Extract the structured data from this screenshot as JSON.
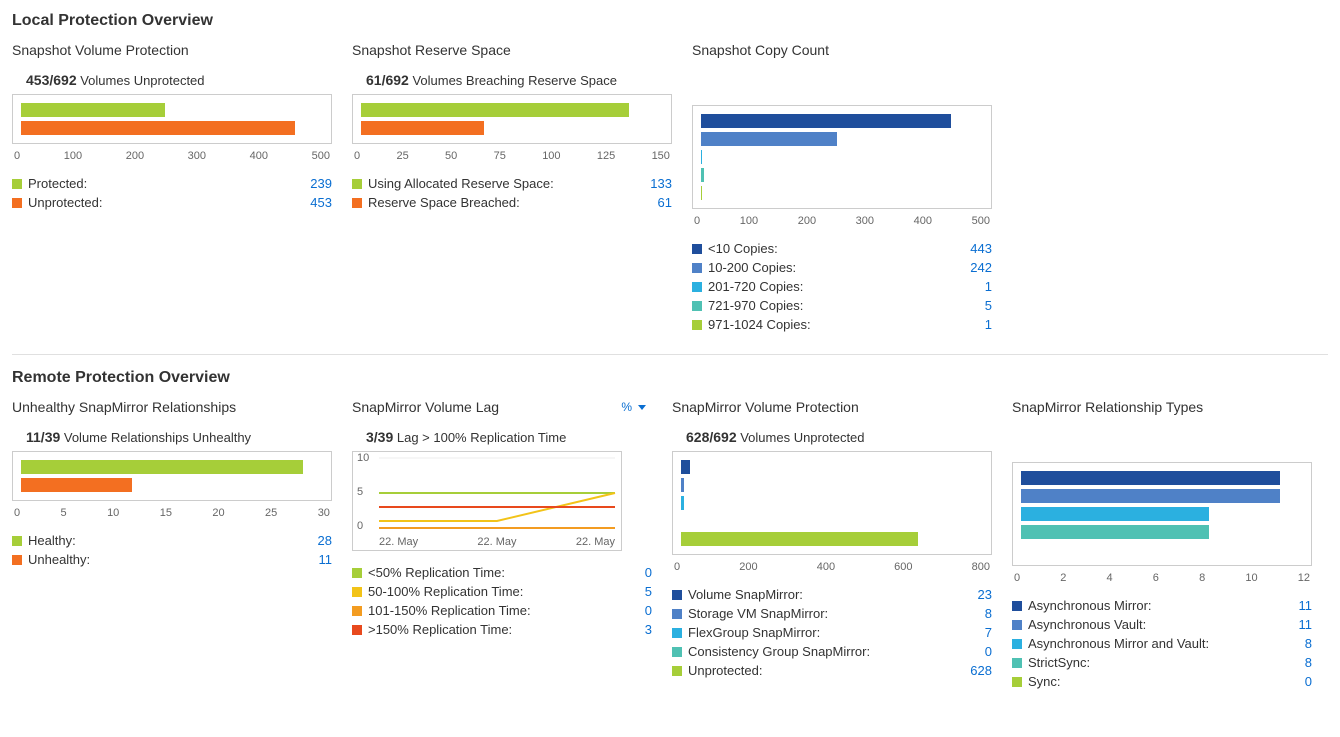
{
  "colors": {
    "green": "#a6ce39",
    "orange": "#f36f21",
    "yellow": "#f2c318",
    "darkblue": "#1f4e9c",
    "blue2": "#4f81c7",
    "cyan": "#2bb0e0",
    "teal": "#4fc1b3",
    "link": "#0a6ed1",
    "border": "#cccccc",
    "grid": "#e6e6e6"
  },
  "sections": {
    "local": "Local Protection Overview",
    "remote": "Remote Protection Overview"
  },
  "svp": {
    "title": "Snapshot Volume Protection",
    "summary_bold": "453/692",
    "summary_rest": " Volumes Unprotected",
    "max": 500,
    "ticks": [
      "0",
      "100",
      "200",
      "300",
      "400",
      "500"
    ],
    "bars": [
      {
        "label": "Protected:",
        "value": 239,
        "color": "#a6ce39"
      },
      {
        "label": "Unprotected:",
        "value": 453,
        "color": "#f36f21"
      }
    ]
  },
  "srs": {
    "title": "Snapshot Reserve Space",
    "summary_bold": "61/692",
    "summary_rest": " Volumes Breaching Reserve Space",
    "max": 150,
    "ticks": [
      "0",
      "25",
      "50",
      "75",
      "100",
      "125",
      "150"
    ],
    "bars": [
      {
        "label": "Using Allocated Reserve Space:",
        "value": 133,
        "color": "#a6ce39"
      },
      {
        "label": "Reserve Space Breached:",
        "value": 61,
        "color": "#f36f21"
      }
    ]
  },
  "scc": {
    "title": "Snapshot Copy Count",
    "max": 500,
    "ticks": [
      "0",
      "100",
      "200",
      "300",
      "400",
      "500"
    ],
    "bars": [
      {
        "label": "<10 Copies:",
        "value": 443,
        "color": "#1f4e9c"
      },
      {
        "label": "10-200 Copies:",
        "value": 242,
        "color": "#4f81c7"
      },
      {
        "label": "201-720 Copies:",
        "value": 1,
        "color": "#2bb0e0"
      },
      {
        "label": "721-970 Copies:",
        "value": 5,
        "color": "#4fc1b3"
      },
      {
        "label": "971-1024 Copies:",
        "value": 1,
        "color": "#a6ce39"
      }
    ]
  },
  "usr": {
    "title": "Unhealthy SnapMirror Relationships",
    "summary_bold": "11/39",
    "summary_rest": " Volume Relationships Unhealthy",
    "max": 30,
    "ticks": [
      "0",
      "5",
      "10",
      "15",
      "20",
      "25",
      "30"
    ],
    "bars": [
      {
        "label": "Healthy:",
        "value": 28,
        "color": "#a6ce39"
      },
      {
        "label": "Unhealthy:",
        "value": 11,
        "color": "#f36f21"
      }
    ]
  },
  "lag": {
    "title": "SnapMirror Volume Lag",
    "dropdown": "%",
    "summary_bold": "3/39",
    "summary_rest": " Lag > 100% Replication Time",
    "ymax": 10,
    "yticks": [
      "10",
      "5",
      "0"
    ],
    "xticks": [
      "22. May",
      "22. May",
      "22. May"
    ],
    "series": [
      {
        "label": "<50% Replication Time:",
        "value": 0,
        "color": "#a6ce39",
        "points": [
          5,
          5,
          5
        ]
      },
      {
        "label": "50-100% Replication Time:",
        "value": 5,
        "color": "#f2c318",
        "points": [
          1,
          1,
          5
        ]
      },
      {
        "label": "101-150% Replication Time:",
        "value": 0,
        "color": "#f39c21",
        "points": [
          0,
          0,
          0
        ]
      },
      {
        "label": ">150% Replication Time:",
        "value": 3,
        "color": "#e8491d",
        "points": [
          3,
          3,
          3
        ]
      }
    ]
  },
  "smvp": {
    "title": "SnapMirror Volume Protection",
    "summary_bold": "628/692",
    "summary_rest": " Volumes Unprotected",
    "max": 800,
    "ticks": [
      "0",
      "200",
      "400",
      "600",
      "800"
    ],
    "bars": [
      {
        "label": "Volume SnapMirror:",
        "value": 23,
        "color": "#1f4e9c"
      },
      {
        "label": "Storage VM SnapMirror:",
        "value": 8,
        "color": "#4f81c7"
      },
      {
        "label": "FlexGroup SnapMirror:",
        "value": 7,
        "color": "#2bb0e0"
      },
      {
        "label": "Consistency Group SnapMirror:",
        "value": 0,
        "color": "#4fc1b3"
      },
      {
        "label": "Unprotected:",
        "value": 628,
        "color": "#a6ce39"
      }
    ]
  },
  "smrt": {
    "title": "SnapMirror Relationship Types",
    "max": 12,
    "ticks": [
      "0",
      "2",
      "4",
      "6",
      "8",
      "10",
      "12"
    ],
    "bars": [
      {
        "label": "Asynchronous Mirror:",
        "value": 11,
        "color": "#1f4e9c"
      },
      {
        "label": "Asynchronous Vault:",
        "value": 11,
        "color": "#4f81c7"
      },
      {
        "label": "Asynchronous Mirror and Vault:",
        "value": 8,
        "color": "#2bb0e0"
      },
      {
        "label": "StrictSync:",
        "value": 8,
        "color": "#4fc1b3"
      },
      {
        "label": "Sync:",
        "value": 0,
        "color": "#a6ce39"
      }
    ]
  }
}
